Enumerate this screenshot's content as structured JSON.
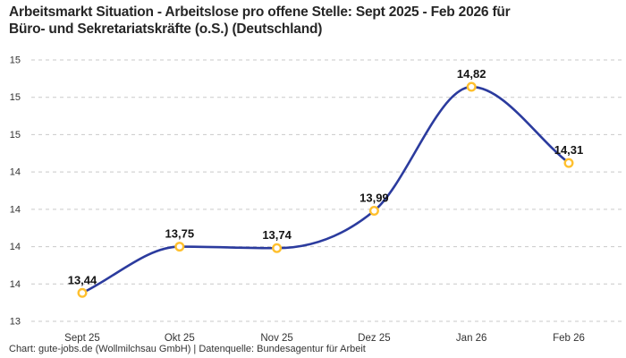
{
  "header": {
    "title_lines": [
      "Arbeitsmarkt Situation - Arbeitslose pro offene Stelle: Sept 2025 - Feb 2026 für",
      "Büro- und Sekretariatskräfte (o.S.) (Deutschland)"
    ]
  },
  "footer": {
    "attribution": "Chart: gute-jobs.de (Wollmilchsau GmbH) | Datenquelle: Bundesagentur für Arbeit"
  },
  "chart_data": {
    "type": "line",
    "title": "Arbeitsmarkt Situation - Arbeitslose pro offene Stelle: Sept 2025 - Feb 2026 für Büro- und Sekretariatskräfte (o.S.) (Deutschland)",
    "categories": [
      "Sept 25",
      "Okt 25",
      "Nov 25",
      "Dez 25",
      "Jan 26",
      "Feb 26"
    ],
    "values": [
      13.44,
      13.75,
      13.74,
      13.99,
      14.82,
      14.31
    ],
    "value_labels": [
      "13,44",
      "13,75",
      "13,74",
      "13,99",
      "14,82",
      "14,31"
    ],
    "series": [
      {
        "name": "Arbeitslose pro offene Stelle",
        "values": [
          13.44,
          13.75,
          13.74,
          13.99,
          14.82,
          14.31
        ]
      }
    ],
    "y_ticks": [
      {
        "value": 15.0,
        "label": "15"
      },
      {
        "value": 14.75,
        "label": "15"
      },
      {
        "value": 14.5,
        "label": "15"
      },
      {
        "value": 14.25,
        "label": "14"
      },
      {
        "value": 14.0,
        "label": "14"
      },
      {
        "value": 13.75,
        "label": "14"
      },
      {
        "value": 13.5,
        "label": "14"
      },
      {
        "value": 13.25,
        "label": "13"
      }
    ],
    "ylim": [
      13.25,
      15.0
    ],
    "xlabel": "",
    "ylabel": "",
    "legend": "none",
    "grid": "horizontal-dashed",
    "curve": "monotone",
    "decimal_separator": ",",
    "colors": {
      "line": "#2b3b9e",
      "marker_stroke": "#ffc02e",
      "marker_fill": "#ffffff",
      "grid": "#c9c9c9",
      "title": "#262626",
      "tick_text": "#333333",
      "label_text": "#141414"
    }
  }
}
